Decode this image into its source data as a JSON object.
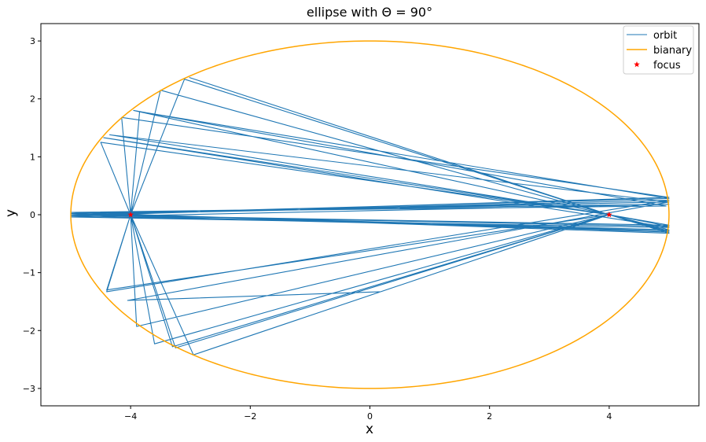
{
  "chart_data": {
    "type": "line",
    "title": "ellipse with Θ = 90°",
    "xlabel": "x",
    "ylabel": "y",
    "xlim": [
      -5.5,
      5.5
    ],
    "ylim": [
      -3.3,
      3.3
    ],
    "xticks": [
      -4,
      -2,
      0,
      2,
      4
    ],
    "yticks": [
      -3,
      -2,
      -1,
      0,
      1,
      2,
      3
    ],
    "xtick_labels": [
      "−4",
      "−2",
      "0",
      "2",
      "4"
    ],
    "ytick_labels": [
      "−3",
      "−2",
      "−1",
      "0",
      "1",
      "2",
      "3"
    ],
    "grid": false,
    "legend_position": "top-right",
    "series": [
      {
        "name": "orbit",
        "kind": "line",
        "color": "#1f77b4",
        "x": [
          -3.02,
          4.0,
          5.0,
          -5.0,
          5.0,
          -5.0,
          5.0,
          -4.45,
          4.0,
          -3.3,
          -4.0,
          -4.5,
          4.0,
          5.0,
          -5.0,
          5.0,
          -3.85,
          -4.0,
          -3.5,
          4.0,
          5.0,
          -5.0,
          5.0,
          -4.35,
          4.0,
          -3.25,
          -4.0,
          -4.4,
          4.0,
          5.0,
          -5.0,
          5.0,
          -4.15,
          -4.0,
          -3.1,
          4.0,
          5.0,
          -5.0,
          4.95,
          -3.95,
          4.0,
          -2.95,
          -4.0,
          -3.9,
          4.0,
          5.0,
          -5.0,
          5.0,
          -4.4,
          -4.0,
          -3.6,
          4.0,
          5.0,
          -5.0,
          5.0,
          -4.05,
          0.18
        ],
        "y": [
          2.37,
          0.0,
          -0.32,
          0.04,
          0.18,
          -0.04,
          -0.22,
          1.33,
          0.0,
          -2.28,
          0.0,
          1.25,
          0.0,
          -0.18,
          0.0,
          0.28,
          1.78,
          0.0,
          2.15,
          0.0,
          -0.26,
          0.02,
          0.22,
          1.38,
          0.0,
          -2.3,
          0.0,
          -1.3,
          0.0,
          -0.26,
          -0.02,
          0.3,
          1.68,
          0.0,
          2.34,
          0.0,
          -0.3,
          0.04,
          0.15,
          1.8,
          0.0,
          -2.42,
          0.0,
          -1.93,
          0.0,
          -0.2,
          0.0,
          0.25,
          -1.33,
          0.0,
          -2.23,
          0.0,
          -0.28,
          0.0,
          0.22,
          -1.48,
          -1.33
        ]
      },
      {
        "name": "bianary",
        "kind": "ellipse",
        "color": "#ffa500",
        "a": 5,
        "b": 3
      },
      {
        "name": "focus",
        "kind": "marker",
        "color": "#ff0000",
        "x": [
          -4,
          4
        ],
        "y": [
          0,
          0
        ]
      }
    ]
  }
}
